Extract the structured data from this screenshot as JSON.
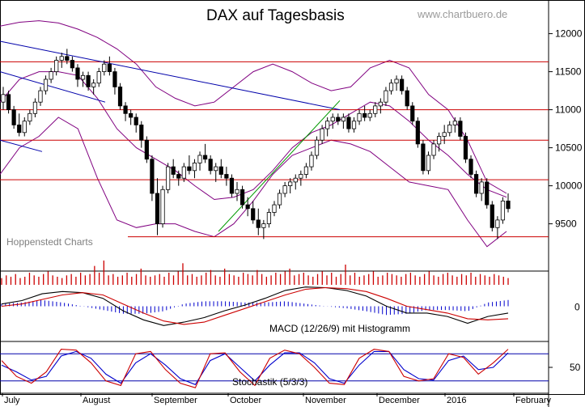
{
  "title": "DAX auf Tagesbasis",
  "watermark": "www.chartbuero.de",
  "source_label": "Hoppenstedt Charts",
  "macd_label": "MACD (12/26/9) mit Histogramm",
  "stoch_label": "Stochastik (5/3/3)",
  "colors": {
    "candle": "#000000",
    "bollinger": "#800080",
    "hline": "#cc0000",
    "trend_blue": "#0000aa",
    "trend_green": "#009900",
    "volume": "#cc0000",
    "macd": "#000000",
    "signal": "#cc0000",
    "histogram": "#0000cc",
    "stoch_k": "#cc0000",
    "stoch_d": "#0000cc",
    "stoch_band": "#0000aa"
  },
  "chart_data": {
    "type": "candlestick",
    "title": "DAX auf Tagesbasis",
    "ylim": [
      8900,
      12400
    ],
    "y_ticks": [
      "9500",
      "10000",
      "10500",
      "11000",
      "11500",
      "12000"
    ],
    "months": [
      "July",
      "August",
      "September",
      "October",
      "November",
      "December",
      "2016",
      "February"
    ],
    "horizontal_levels": [
      11630,
      11000,
      10600,
      10080,
      9330
    ],
    "trendlines": [
      {
        "color": "blue",
        "from": [
          "Jul 01",
          11900
        ],
        "to": [
          "Nov 20",
          11000
        ]
      },
      {
        "color": "blue",
        "from": [
          "Jul 01",
          11500
        ],
        "to": [
          "Aug 03",
          11100
        ]
      },
      {
        "color": "blue",
        "from": [
          "Jul 01",
          10600
        ],
        "to": [
          "Jul 20",
          10450
        ]
      },
      {
        "color": "green",
        "from": [
          "Sep 29",
          9400
        ],
        "to": [
          "Nov 17",
          11120
        ]
      }
    ],
    "candles": [
      [
        11100,
        11300,
        11000,
        11200
      ],
      [
        11200,
        11250,
        10950,
        11000
      ],
      [
        11000,
        11050,
        10750,
        10800
      ],
      [
        10800,
        10950,
        10650,
        10700
      ],
      [
        10700,
        10900,
        10650,
        10850
      ],
      [
        10850,
        11000,
        10800,
        10950
      ],
      [
        10950,
        11150,
        10900,
        11100
      ],
      [
        11100,
        11300,
        11050,
        11250
      ],
      [
        11250,
        11450,
        11200,
        11400
      ],
      [
        11400,
        11550,
        11350,
        11500
      ],
      [
        11500,
        11700,
        11450,
        11650
      ],
      [
        11650,
        11750,
        11550,
        11700
      ],
      [
        11700,
        11800,
        11600,
        11650
      ],
      [
        11650,
        11700,
        11500,
        11550
      ],
      [
        11550,
        11600,
        11300,
        11400
      ],
      [
        11400,
        11500,
        11300,
        11450
      ],
      [
        11450,
        11500,
        11250,
        11300
      ],
      [
        11300,
        11400,
        11200,
        11350
      ],
      [
        11350,
        11550,
        11300,
        11500
      ],
      [
        11500,
        11650,
        11450,
        11600
      ],
      [
        11600,
        11700,
        11450,
        11500
      ],
      [
        11500,
        11550,
        11200,
        11300
      ],
      [
        11300,
        11350,
        11000,
        11050
      ],
      [
        11050,
        11100,
        10850,
        10950
      ],
      [
        10950,
        11000,
        10800,
        10900
      ],
      [
        10900,
        10950,
        10700,
        10800
      ],
      [
        10800,
        10850,
        10500,
        10600
      ],
      [
        10600,
        10650,
        10300,
        10350
      ],
      [
        10350,
        10400,
        9800,
        9900
      ],
      [
        9900,
        10100,
        9350,
        9500
      ],
      [
        9500,
        10000,
        9450,
        9950
      ],
      [
        9950,
        10300,
        9900,
        10250
      ],
      [
        10250,
        10350,
        10100,
        10150
      ],
      [
        10150,
        10200,
        10000,
        10100
      ],
      [
        10100,
        10300,
        10050,
        10250
      ],
      [
        10250,
        10400,
        10150,
        10200
      ],
      [
        10200,
        10350,
        10100,
        10300
      ],
      [
        10300,
        10450,
        10200,
        10400
      ],
      [
        10400,
        10550,
        10300,
        10350
      ],
      [
        10350,
        10400,
        10150,
        10200
      ],
      [
        10200,
        10300,
        10050,
        10250
      ],
      [
        10250,
        10350,
        10100,
        10150
      ],
      [
        10150,
        10250,
        10000,
        10100
      ],
      [
        10100,
        10150,
        9850,
        9900
      ],
      [
        9900,
        10050,
        9800,
        9950
      ],
      [
        9950,
        10000,
        9700,
        9750
      ],
      [
        9750,
        9850,
        9600,
        9700
      ],
      [
        9700,
        9800,
        9500,
        9550
      ],
      [
        9550,
        9700,
        9350,
        9450
      ],
      [
        9450,
        9550,
        9300,
        9500
      ],
      [
        9500,
        9700,
        9450,
        9650
      ],
      [
        9650,
        9800,
        9600,
        9750
      ],
      [
        9750,
        9950,
        9700,
        9900
      ],
      [
        9900,
        10050,
        9850,
        10000
      ],
      [
        10000,
        10100,
        9900,
        10050
      ],
      [
        10050,
        10150,
        9950,
        10100
      ],
      [
        10100,
        10200,
        10000,
        10150
      ],
      [
        10150,
        10300,
        10100,
        10250
      ],
      [
        10250,
        10450,
        10200,
        10400
      ],
      [
        10400,
        10650,
        10350,
        10600
      ],
      [
        10600,
        10800,
        10550,
        10750
      ],
      [
        10750,
        10900,
        10650,
        10850
      ],
      [
        10850,
        10950,
        10750,
        10900
      ],
      [
        10900,
        10950,
        10800,
        10850
      ],
      [
        10850,
        10950,
        10750,
        10900
      ],
      [
        10900,
        10950,
        10700,
        10750
      ],
      [
        10750,
        10900,
        10700,
        10850
      ],
      [
        10850,
        11000,
        10800,
        10950
      ],
      [
        10950,
        11050,
        10850,
        10900
      ],
      [
        10900,
        11000,
        10850,
        10950
      ],
      [
        10950,
        11100,
        10900,
        11050
      ],
      [
        11050,
        11150,
        10950,
        11100
      ],
      [
        11100,
        11300,
        11050,
        11250
      ],
      [
        11250,
        11400,
        11200,
        11350
      ],
      [
        11350,
        11450,
        11250,
        11400
      ],
      [
        11400,
        11450,
        11200,
        11250
      ],
      [
        11250,
        11300,
        11000,
        11050
      ],
      [
        11050,
        11100,
        10800,
        10850
      ],
      [
        10850,
        10900,
        10500,
        10550
      ],
      [
        10550,
        10600,
        10150,
        10200
      ],
      [
        10200,
        10450,
        10150,
        10400
      ],
      [
        10400,
        10600,
        10350,
        10550
      ],
      [
        10550,
        10700,
        10450,
        10650
      ],
      [
        10650,
        10800,
        10550,
        10700
      ],
      [
        10700,
        10850,
        10650,
        10800
      ],
      [
        10800,
        10900,
        10700,
        10850
      ],
      [
        10850,
        10900,
        10600,
        10650
      ],
      [
        10650,
        10700,
        10300,
        10350
      ],
      [
        10350,
        10400,
        10100,
        10150
      ],
      [
        10150,
        10200,
        9850,
        9900
      ],
      [
        9900,
        10100,
        9800,
        10050
      ],
      [
        10050,
        10100,
        9700,
        9750
      ],
      [
        9750,
        9800,
        9400,
        9450
      ],
      [
        9450,
        9600,
        9300,
        9550
      ],
      [
        9550,
        9850,
        9500,
        9800
      ],
      [
        9800,
        9900,
        9650,
        9700
      ]
    ],
    "bollinger": {
      "upper": [
        12100,
        12150,
        12170,
        12140,
        12060,
        11950,
        11800,
        11600,
        11300,
        11150,
        11050,
        11100,
        11300,
        11500,
        11600,
        11500,
        11350,
        11250,
        11300,
        11550,
        11650,
        11550,
        11200,
        11000,
        10600,
        10050,
        9900
      ],
      "middle": [
        11100,
        11400,
        11500,
        11500,
        11450,
        11150,
        10750,
        10500,
        10350,
        10200,
        10000,
        9820,
        9850,
        9950,
        10200,
        10500,
        10700,
        10800,
        10950,
        11100,
        11050,
        10850,
        10600,
        10400,
        10150,
        9950,
        9850
      ],
      "lower": [
        10150,
        10500,
        10650,
        10900,
        10750,
        10100,
        9550,
        9450,
        9500,
        9500,
        9400,
        9330,
        9500,
        9800,
        10150,
        10400,
        10500,
        10600,
        10550,
        10450,
        10250,
        10050,
        10000,
        9950,
        9550,
        9200,
        9400
      ]
    },
    "volume": [
      5,
      7,
      6,
      8,
      5,
      6,
      9,
      7,
      6,
      8,
      10,
      7,
      6,
      5,
      7,
      8,
      6,
      9,
      7,
      8,
      14,
      9,
      18,
      7,
      8,
      6,
      7,
      9,
      6,
      8,
      12,
      7,
      6,
      7,
      8,
      6,
      9,
      7,
      10,
      16,
      7,
      8,
      6,
      7,
      9,
      11,
      7,
      6,
      12,
      8,
      7,
      6,
      9,
      8,
      7,
      11,
      8,
      6,
      7,
      9,
      8,
      10,
      12,
      7,
      8,
      9,
      7,
      6,
      8,
      10,
      7,
      9,
      6,
      8,
      15,
      7,
      9,
      6,
      7,
      8,
      10,
      6,
      7,
      9,
      8,
      7,
      6,
      8,
      9,
      7,
      6,
      8,
      10,
      7,
      6,
      8,
      9,
      7,
      6,
      8,
      7,
      9,
      6,
      8,
      7,
      6,
      8,
      7,
      6,
      5
    ],
    "macd": {
      "macd": [
        0.1,
        0.25,
        0.55,
        0.65,
        0.6,
        0.35,
        -0.2,
        -0.6,
        -0.85,
        -0.7,
        -0.5,
        -0.2,
        0.05,
        0.35,
        0.7,
        0.85,
        0.82,
        0.7,
        0.45,
        0.0,
        -0.3,
        -0.3,
        -0.45,
        -0.75,
        -0.45,
        -0.3
      ],
      "signal": [
        0.0,
        0.1,
        0.3,
        0.5,
        0.6,
        0.5,
        0.1,
        -0.3,
        -0.65,
        -0.8,
        -0.7,
        -0.4,
        -0.1,
        0.2,
        0.5,
        0.75,
        0.82,
        0.78,
        0.65,
        0.35,
        0.0,
        -0.15,
        -0.3,
        -0.55,
        -0.6,
        -0.55
      ]
    },
    "stochastic": {
      "y_ticks": [
        "50"
      ],
      "k": [
        65,
        30,
        15,
        40,
        90,
        88,
        60,
        20,
        10,
        80,
        85,
        45,
        15,
        5,
        80,
        82,
        40,
        10,
        70,
        88,
        80,
        50,
        15,
        12,
        70,
        90,
        85,
        30,
        20,
        25,
        80,
        72,
        35,
        60,
        90
      ],
      "d": [
        55,
        40,
        22,
        30,
        75,
        85,
        70,
        35,
        15,
        60,
        80,
        55,
        25,
        12,
        65,
        80,
        50,
        20,
        55,
        82,
        82,
        60,
        25,
        15,
        55,
        85,
        85,
        45,
        25,
        22,
        65,
        75,
        45,
        50,
        82
      ],
      "bands": [
        80,
        20
      ]
    }
  }
}
